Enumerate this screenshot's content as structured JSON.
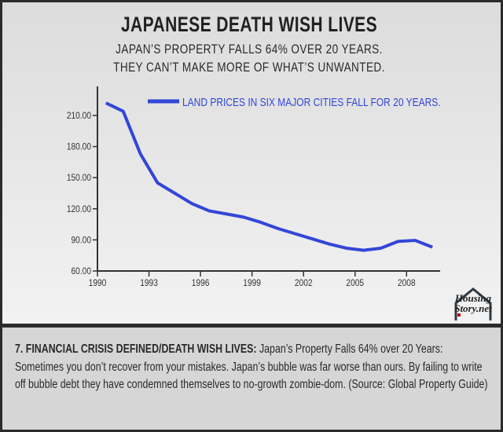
{
  "header": {
    "title": "JAPANESE DEATH WISH LIVES",
    "subtitle_line1": "JAPAN’S PROPERTY FALLS 64% OVER 20 YEARS.",
    "subtitle_line2": "THEY CAN’T MAKE MORE OF WHAT’S UNWANTED."
  },
  "chart_data": {
    "type": "line",
    "title": "JAPANESE DEATH WISH LIVES",
    "xlabel": "",
    "ylabel": "",
    "xlim": [
      1990,
      2010
    ],
    "ylim": [
      60,
      225
    ],
    "x_ticks": [
      "1990",
      "1993",
      "1996",
      "1999",
      "2002",
      "2005",
      "2008"
    ],
    "y_ticks": [
      "60.00",
      "90.00",
      "120.00",
      "150.00",
      "180.00",
      "210.00"
    ],
    "grid": false,
    "legend_position": "top",
    "series": [
      {
        "name": "LAND PRICES IN SIX MAJOR CITIES FALL FOR 20 YEARS.",
        "color": "#3346d8",
        "x": [
          1990.5,
          1991.5,
          1992.5,
          1993.5,
          1994.5,
          1995.5,
          1996.5,
          1997.5,
          1998.5,
          1999.5,
          2000.5,
          2001.5,
          2002.5,
          2003.5,
          2004.5,
          2005.5,
          2006.5,
          2007.5,
          2008.5,
          2009.5
        ],
        "y": [
          222,
          214,
          173,
          145,
          135,
          125,
          118,
          115,
          112,
          107,
          101,
          96,
          91,
          86,
          82,
          80,
          82,
          88.5,
          89.5,
          83
        ]
      }
    ]
  },
  "logo": {
    "text_line1": "Housing",
    "text_line2": "Story.net"
  },
  "caption": {
    "bold": "7. FINANCIAL CRISIS DEFINED/DEATH WISH LIVES:",
    "text": " Japan’s Property Falls 64% over 20 Years: Sometimes you don’t recover from your mistakes. Japan’s bubble was far worse than ours. By failing to write off bubble debt they have condemned themselves to no-growth zombie-dom. (Source: Global Property Guide)"
  }
}
